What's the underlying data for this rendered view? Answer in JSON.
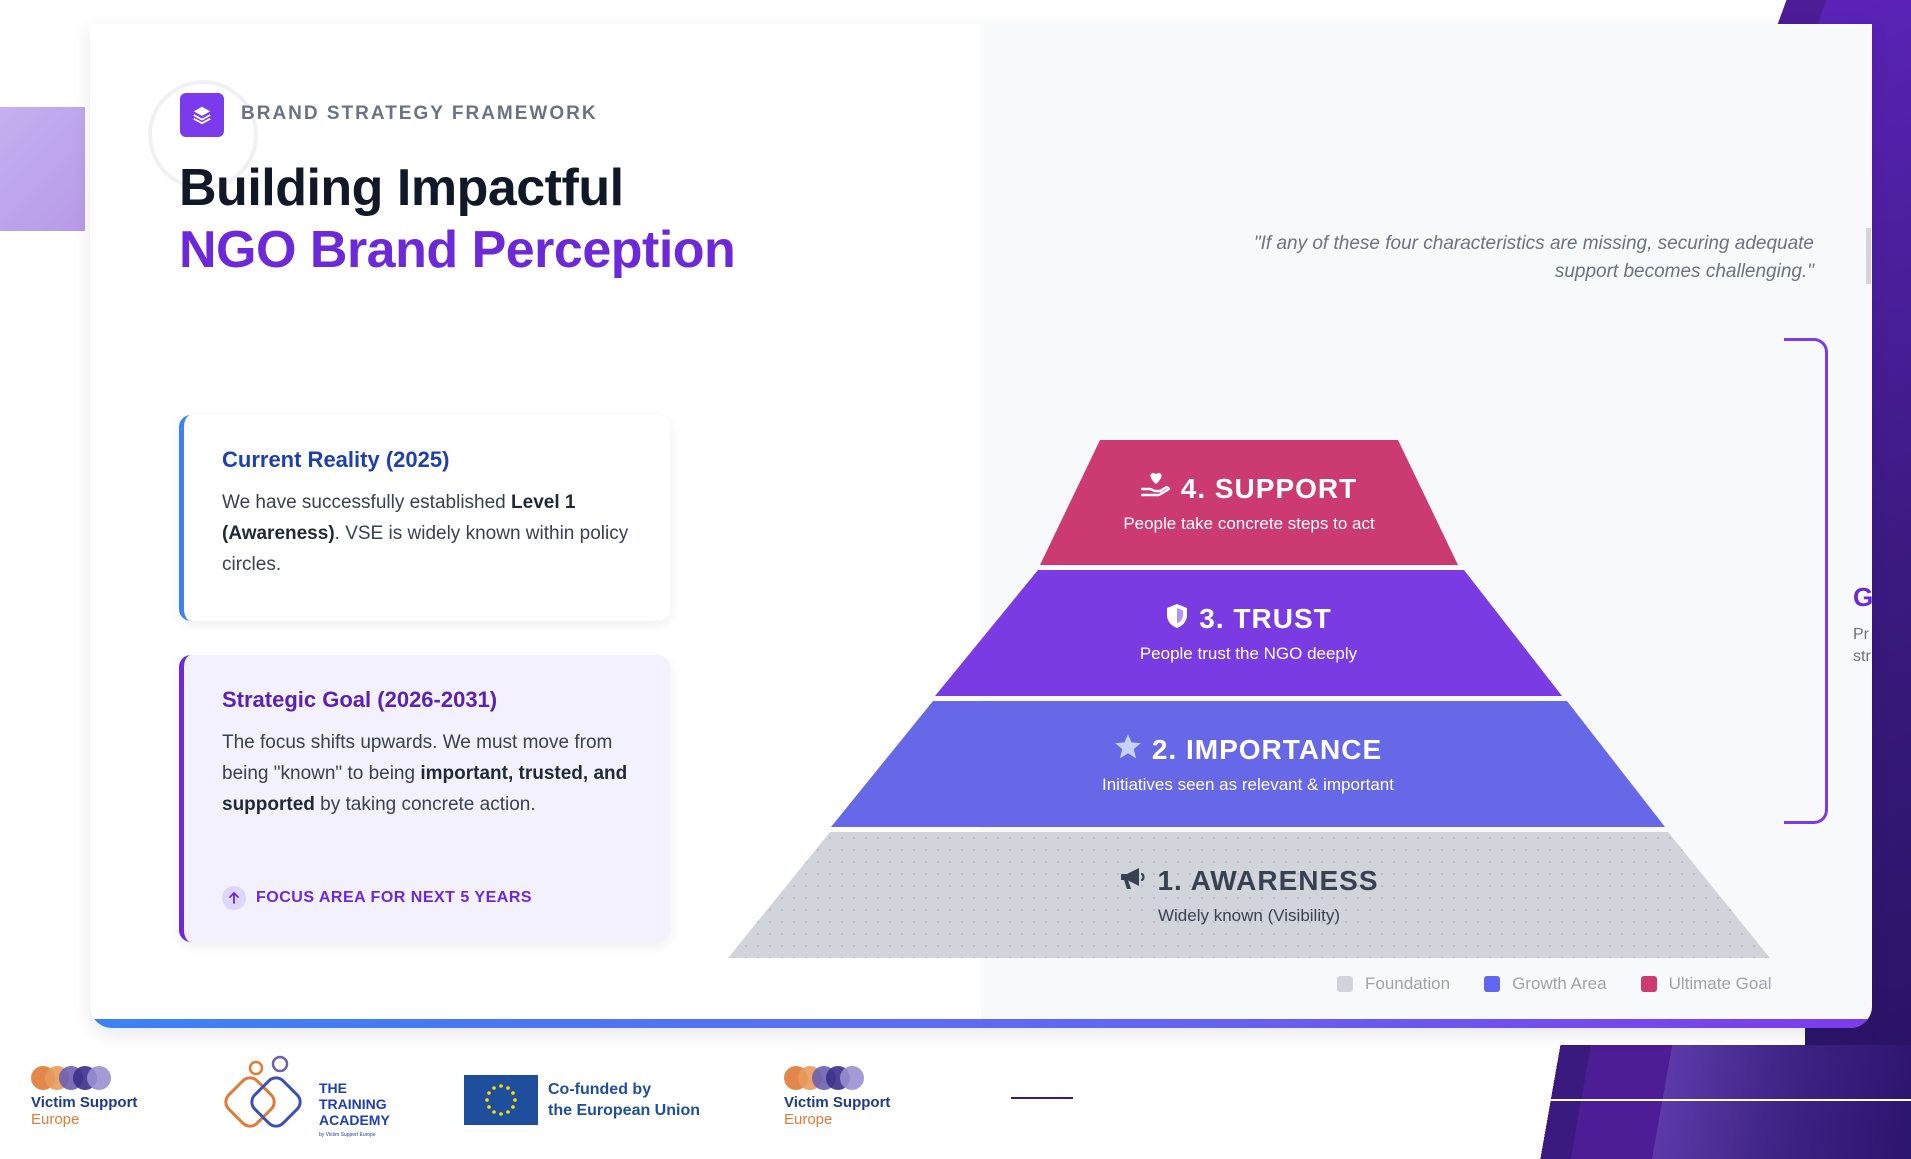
{
  "header": {
    "eyebrow": "BRAND STRATEGY FRAMEWORK",
    "title_line1": "Building Impactful",
    "title_line2": "NGO Brand Perception",
    "icon": "layers-icon"
  },
  "current_reality": {
    "heading": "Current Reality (2025)",
    "text_before": "We have successfully established ",
    "text_bold": "Level 1 (Awareness)",
    "text_after": ". VSE is widely known within policy circles."
  },
  "strategic_goal": {
    "heading": "Strategic Goal (2026-2031)",
    "text_before": "The focus shifts upwards. We must move from being \"known\" to being ",
    "text_bold": "important, trusted, and supported",
    "text_after": " by taking concrete action.",
    "focus_label": "FOCUS AREA FOR NEXT 5 YEARS",
    "focus_icon": "arrow-up-icon"
  },
  "quote": "\"If any of these four characteristics are missing, securing adequate support becomes challenging.\"",
  "bracket": {
    "letter": "G",
    "sub_line1": "Pr",
    "sub_line2": "str"
  },
  "pyramid": {
    "support": {
      "title": "4. SUPPORT",
      "subtitle": "People take concrete steps to act",
      "icon": "hand-heart-icon",
      "color": "#cc3a72"
    },
    "trust": {
      "title": "3. TRUST",
      "subtitle": "People trust the NGO deeply",
      "icon": "shield-icon",
      "color": "#7a3be3"
    },
    "importance": {
      "title": "2. IMPORTANCE",
      "subtitle": "Initiatives seen as relevant & important",
      "icon": "star-icon",
      "color": "#6668e8"
    },
    "awareness": {
      "title": "1. AWARENESS",
      "subtitle": "Widely known (Visibility)",
      "icon": "megaphone-icon",
      "color": "#d1d5db"
    }
  },
  "legend": [
    {
      "label": "Foundation",
      "color": "#d1d5db"
    },
    {
      "label": "Growth Area",
      "color": "#6366f1"
    },
    {
      "label": "Ultimate Goal",
      "color": "#cc3a72"
    }
  ],
  "footer": {
    "vse_name": "Victim Support",
    "vse_sub": "Europe",
    "training_academy": [
      "THE",
      "TRAINING",
      "ACADEMY"
    ],
    "training_small": "by Victim Support Europe",
    "eu_line1": "Co-funded by",
    "eu_line2": "the European Union",
    "vse2_name": "Victim Support",
    "vse2_sub": "Europe"
  }
}
